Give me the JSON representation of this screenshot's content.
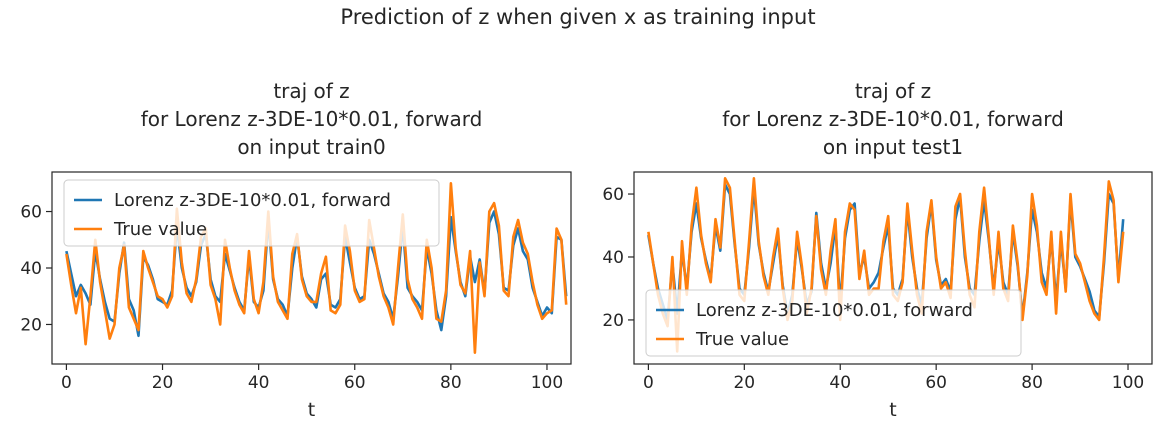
{
  "suptitle": "Prediction of z when given x as training input",
  "colors": {
    "model": "#1f77b4",
    "truth": "#ff7f0e"
  },
  "chart_data": [
    {
      "type": "line",
      "title": [
        "traj of z",
        "for Lorenz z-3DE-10*0.01, forward",
        "on input train0"
      ],
      "xlabel": "t",
      "ylabel": "",
      "xlim": [
        -3,
        105
      ],
      "ylim": [
        6,
        74
      ],
      "xticks": [
        0,
        20,
        40,
        60,
        80,
        100
      ],
      "yticks": [
        20,
        40,
        60
      ],
      "legend": "upper-left",
      "x_start": 0,
      "x_step": 1,
      "series": [
        {
          "name": "Lorenz z-3DE-10*0.01, forward",
          "color": "#1f77b4",
          "values": [
            46,
            38,
            30,
            34,
            31,
            27,
            46,
            36,
            28,
            22,
            21,
            38,
            49,
            29,
            25,
            16,
            44,
            41,
            36,
            29,
            28,
            27,
            32,
            55,
            40,
            33,
            30,
            35,
            48,
            52,
            36,
            30,
            28,
            45,
            39,
            33,
            28,
            25,
            44,
            28,
            26,
            32,
            57,
            36,
            29,
            27,
            23,
            40,
            51,
            37,
            31,
            29,
            26,
            36,
            38,
            27,
            26,
            29,
            51,
            42,
            33,
            29,
            30,
            50,
            45,
            38,
            31,
            28,
            22,
            37,
            55,
            33,
            30,
            28,
            25,
            47,
            38,
            25,
            18,
            30,
            58,
            46,
            35,
            30,
            44,
            35,
            43,
            31,
            56,
            60,
            52,
            33,
            32,
            48,
            54,
            46,
            43,
            33,
            28,
            23,
            26,
            24,
            51,
            50,
            30
          ]
        },
        {
          "name": "True value",
          "color": "#ff7f0e",
          "values": [
            45,
            34,
            24,
            33,
            13,
            30,
            50,
            35,
            25,
            15,
            20,
            40,
            48,
            26,
            22,
            18,
            46,
            40,
            35,
            30,
            29,
            26,
            30,
            61,
            42,
            31,
            28,
            36,
            51,
            54,
            34,
            29,
            20,
            50,
            40,
            32,
            27,
            24,
            46,
            29,
            24,
            35,
            60,
            37,
            28,
            25,
            22,
            45,
            52,
            36,
            30,
            28,
            28,
            38,
            44,
            25,
            24,
            27,
            55,
            46,
            32,
            28,
            29,
            57,
            47,
            37,
            30,
            26,
            20,
            40,
            59,
            36,
            29,
            26,
            22,
            50,
            40,
            22,
            21,
            32,
            70,
            47,
            34,
            31,
            46,
            10,
            42,
            30,
            60,
            63,
            55,
            32,
            30,
            51,
            57,
            49,
            45,
            35,
            27,
            22,
            24,
            25,
            54,
            50,
            27
          ]
        }
      ]
    },
    {
      "type": "line",
      "title": [
        "traj of z",
        "for Lorenz z-3DE-10*0.01, forward",
        "on input test1"
      ],
      "xlabel": "t",
      "ylabel": "",
      "xlim": [
        -3,
        105
      ],
      "ylim": [
        6,
        67
      ],
      "xticks": [
        0,
        20,
        40,
        60,
        80,
        100
      ],
      "yticks": [
        20,
        40,
        60
      ],
      "legend": "lower-left",
      "x_start": 0,
      "x_step": 1,
      "series": [
        {
          "name": "Lorenz z-3DE-10*0.01, forward",
          "color": "#1f77b4",
          "values": [
            47,
            38,
            30,
            25,
            20,
            38,
            22,
            42,
            30,
            48,
            57,
            46,
            39,
            33,
            50,
            42,
            63,
            60,
            44,
            30,
            28,
            43,
            62,
            44,
            35,
            29,
            38,
            47,
            31,
            22,
            28,
            46,
            36,
            25,
            29,
            54,
            38,
            30,
            38,
            50,
            25,
            46,
            55,
            57,
            35,
            40,
            30,
            32,
            35,
            43,
            50,
            30,
            28,
            33,
            55,
            40,
            30,
            25,
            46,
            57,
            39,
            31,
            33,
            29,
            52,
            59,
            40,
            30,
            28,
            45,
            58,
            45,
            30,
            45,
            32,
            28,
            48,
            37,
            21,
            35,
            55,
            48,
            35,
            30,
            46,
            26,
            45,
            30,
            58,
            40,
            37,
            33,
            29,
            23,
            21,
            38,
            60,
            57,
            33,
            52
          ]
        },
        {
          "name": "True value",
          "color": "#ff7f0e",
          "values": [
            48,
            38,
            28,
            22,
            18,
            40,
            10,
            45,
            28,
            50,
            62,
            47,
            38,
            32,
            52,
            43,
            65,
            62,
            45,
            28,
            26,
            45,
            65,
            45,
            34,
            28,
            40,
            49,
            30,
            20,
            26,
            48,
            37,
            22,
            30,
            53,
            36,
            28,
            42,
            52,
            20,
            48,
            57,
            55,
            33,
            42,
            28,
            30,
            30,
            45,
            53,
            28,
            26,
            32,
            57,
            42,
            28,
            22,
            48,
            58,
            40,
            30,
            32,
            27,
            56,
            60,
            42,
            28,
            24,
            48,
            62,
            46,
            28,
            48,
            30,
            26,
            50,
            38,
            20,
            34,
            60,
            50,
            32,
            28,
            48,
            22,
            48,
            29,
            60,
            41,
            38,
            32,
            26,
            22,
            20,
            40,
            64,
            58,
            32,
            48
          ]
        }
      ]
    }
  ]
}
